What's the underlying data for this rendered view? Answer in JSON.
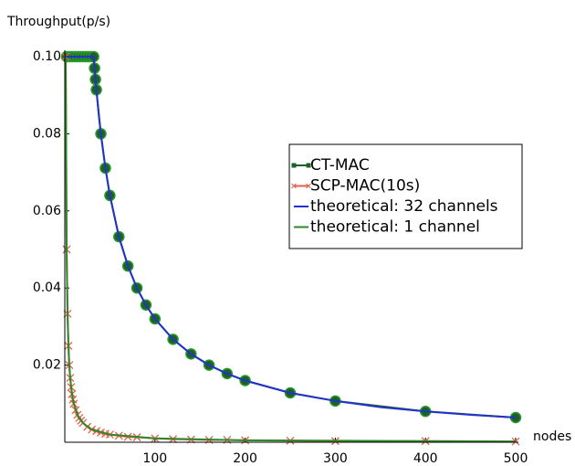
{
  "chart_data": {
    "type": "line",
    "y_label": "Throughput(p/s)",
    "x_label": "nodes",
    "xlim": [
      0,
      500
    ],
    "ylim": [
      0,
      0.1
    ],
    "xticks": [
      100,
      200,
      300,
      400,
      500
    ],
    "yticks": [
      0.02,
      0.04,
      0.06,
      0.08,
      {
        "value": 0.1,
        "label": "0.10"
      }
    ],
    "series": [
      {
        "name": "CT-MAC",
        "color": "#1f5f2a",
        "marker": "circle",
        "x": [
          2,
          5,
          8,
          11,
          14,
          17,
          20,
          23,
          26,
          29,
          32,
          33,
          34,
          35,
          40,
          45,
          50,
          60,
          70,
          80,
          90,
          100,
          120,
          140,
          160,
          180,
          200,
          250,
          300,
          400,
          500
        ],
        "values": [
          0.1,
          0.1,
          0.1,
          0.1,
          0.1,
          0.1,
          0.1,
          0.1,
          0.1,
          0.1,
          0.1,
          0.097,
          0.0941,
          0.0914,
          0.08,
          0.0711,
          0.064,
          0.0533,
          0.0457,
          0.04,
          0.0356,
          0.032,
          0.0267,
          0.0229,
          0.02,
          0.0178,
          0.016,
          0.0128,
          0.0107,
          0.008,
          0.0064
        ]
      },
      {
        "name": "SCP-MAC(10s)",
        "color": "#e2604a",
        "marker": "x",
        "x": [
          1,
          2,
          3,
          4,
          5,
          6,
          7,
          8,
          9,
          10,
          12,
          14,
          16,
          18,
          20,
          25,
          30,
          35,
          40,
          45,
          50,
          60,
          70,
          80,
          100,
          120,
          140,
          160,
          180,
          200,
          250,
          300,
          400,
          500
        ],
        "values": [
          0.1,
          0.05,
          0.0333,
          0.025,
          0.02,
          0.0167,
          0.0143,
          0.0125,
          0.0111,
          0.01,
          0.0083,
          0.0071,
          0.0063,
          0.0056,
          0.005,
          0.004,
          0.0033,
          0.0029,
          0.0025,
          0.0022,
          0.002,
          0.0017,
          0.0014,
          0.0013,
          0.001,
          0.0008,
          0.0007,
          0.0006,
          0.0006,
          0.0005,
          0.0004,
          0.0003,
          0.0003,
          0.0002
        ]
      },
      {
        "name": "theoretical: 32 channels",
        "color": "#2233cc",
        "x": [
          0,
          32,
          34,
          36,
          38,
          40,
          45,
          50,
          60,
          70,
          80,
          90,
          100,
          120,
          140,
          160,
          180,
          200,
          250,
          300,
          350,
          400,
          450,
          500
        ],
        "values": [
          0.1,
          0.1,
          0.0941,
          0.0889,
          0.0842,
          0.08,
          0.0711,
          0.064,
          0.0533,
          0.0457,
          0.04,
          0.0356,
          0.032,
          0.0267,
          0.0229,
          0.02,
          0.0178,
          0.016,
          0.0128,
          0.0107,
          0.0091,
          0.008,
          0.0071,
          0.0064
        ]
      },
      {
        "name": "theoretical: 1 channel",
        "color": "#2a8a2a",
        "x": [
          1,
          2,
          3,
          4,
          5,
          6,
          8,
          10,
          15,
          20,
          30,
          50,
          100,
          200,
          500
        ],
        "values": [
          0.1,
          0.05,
          0.0333,
          0.025,
          0.02,
          0.0167,
          0.0125,
          0.01,
          0.0067,
          0.005,
          0.0033,
          0.002,
          0.001,
          0.0005,
          0.0002
        ]
      }
    ]
  }
}
